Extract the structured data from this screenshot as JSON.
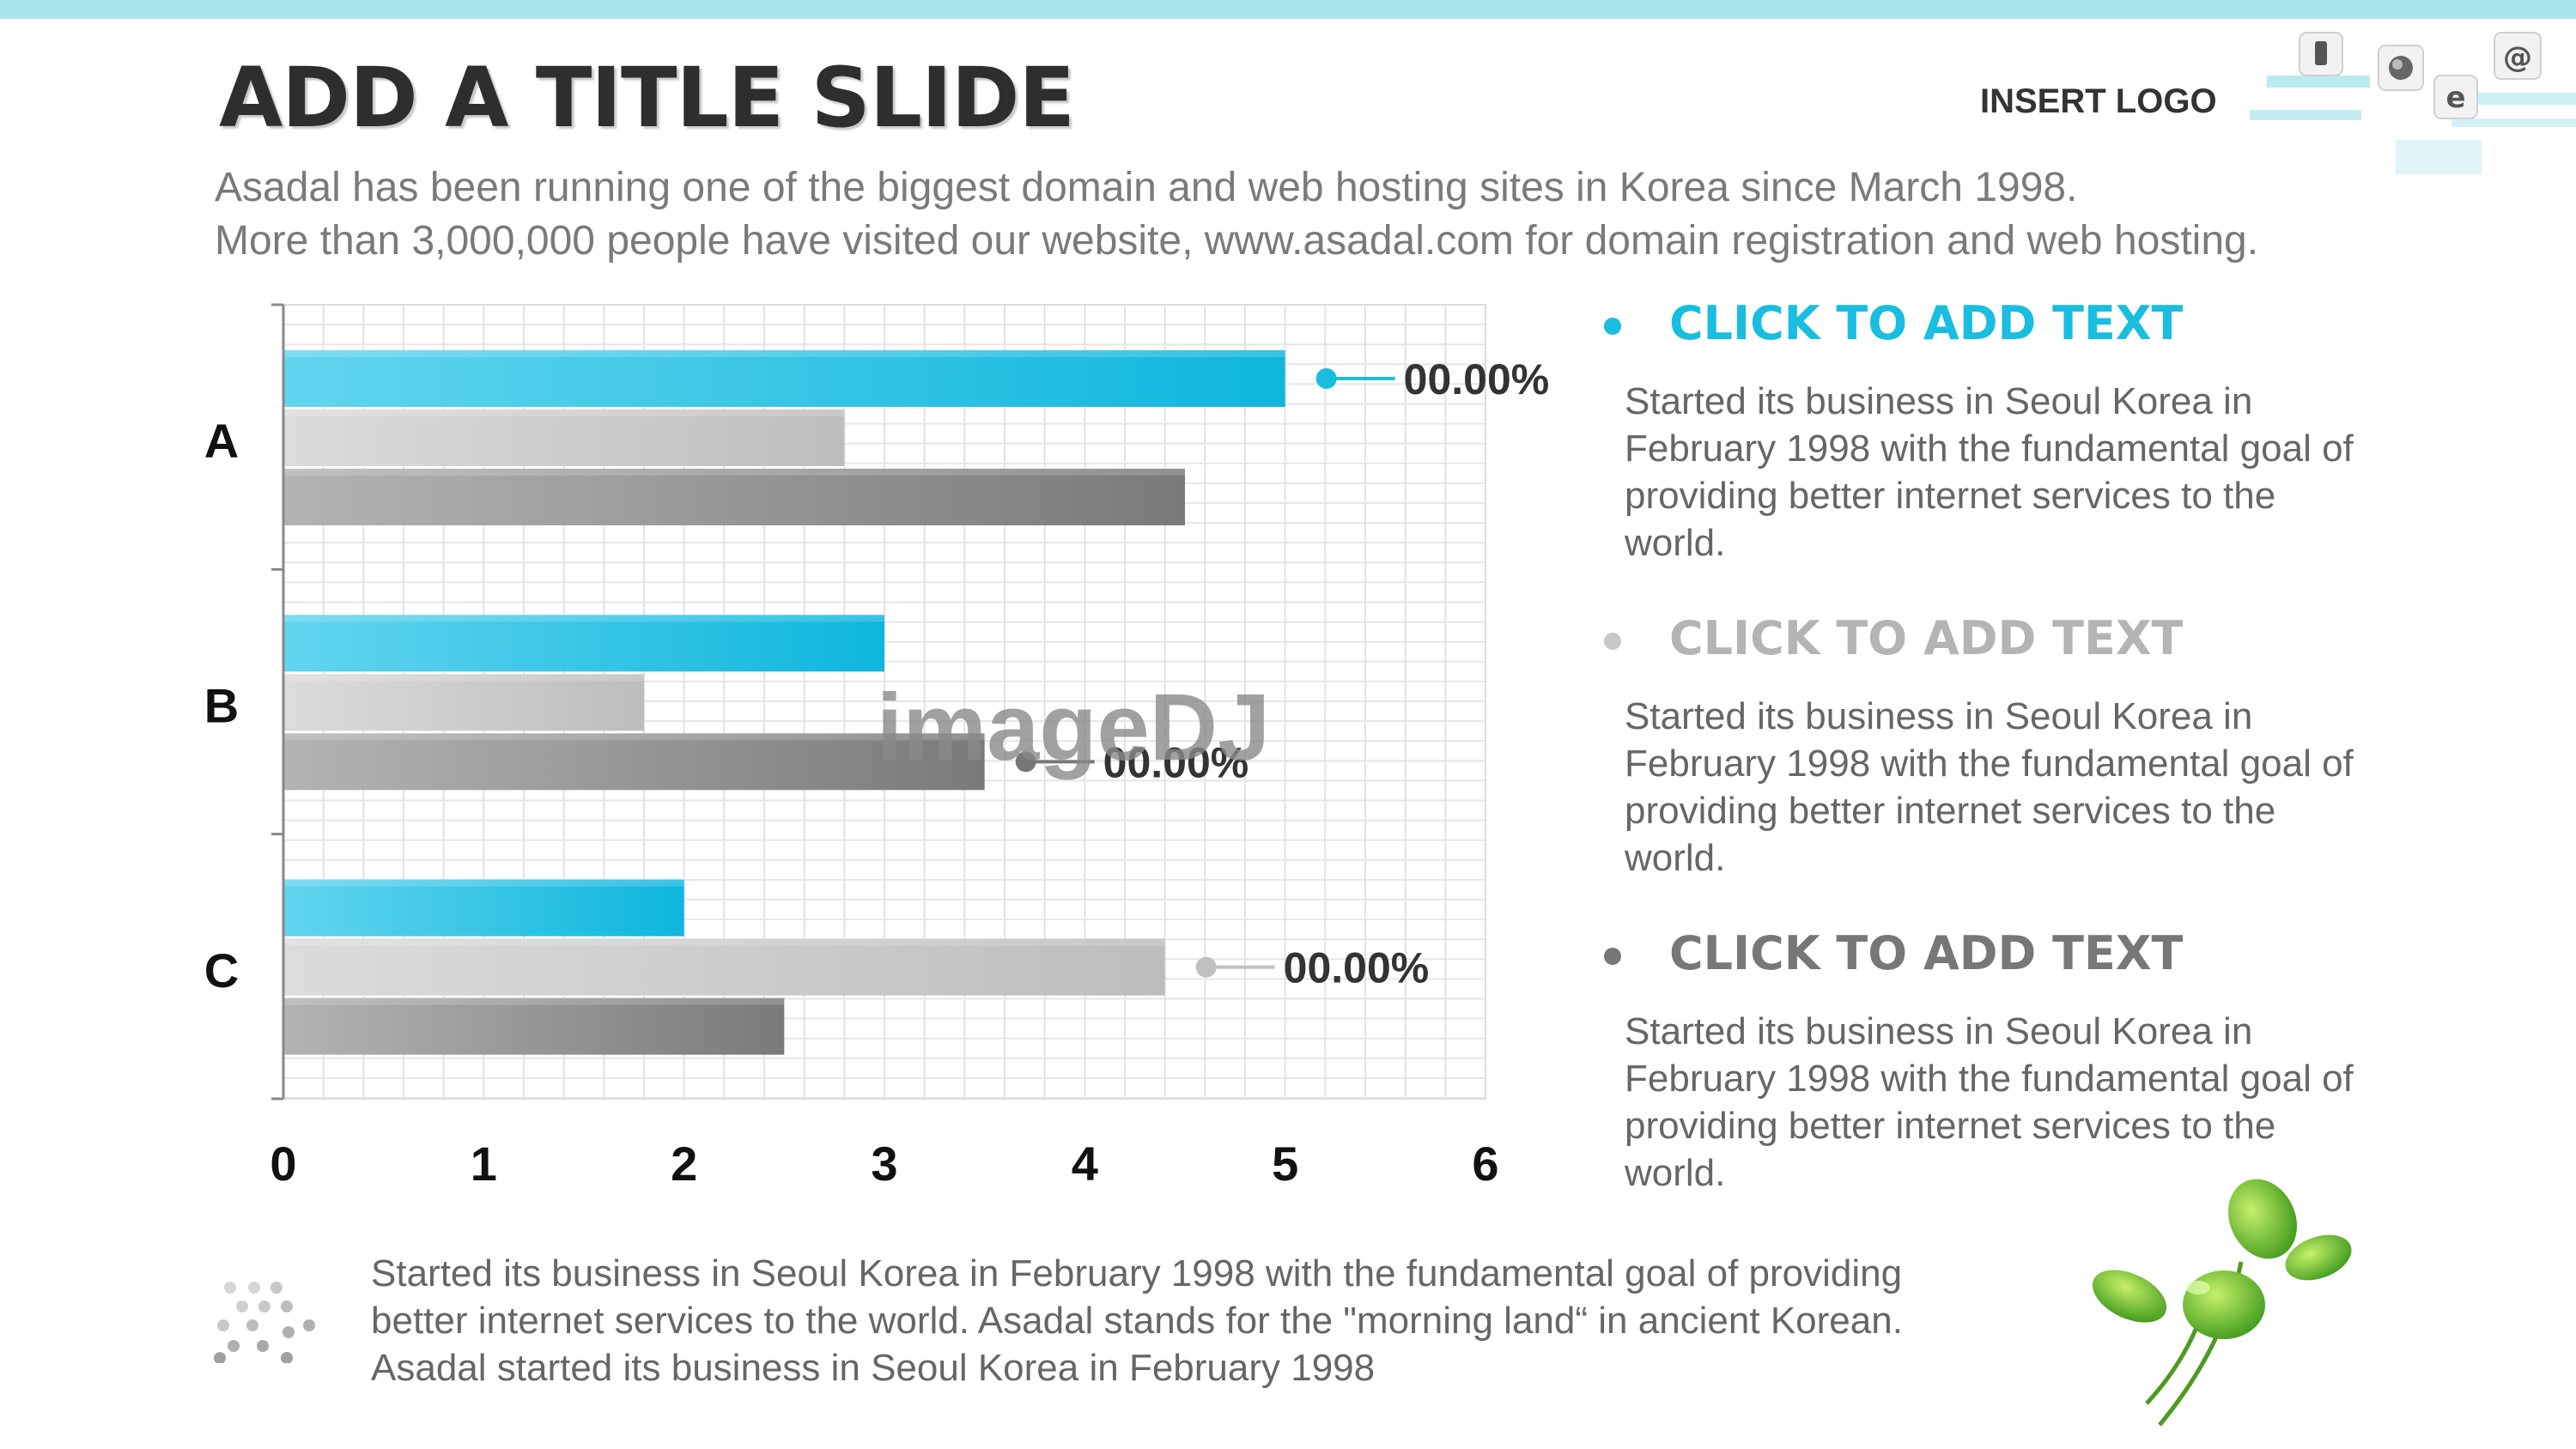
{
  "slide": {
    "title": "ADD A TITLE SLIDE",
    "subtitle_lines": [
      "Asadal has been running one of the biggest domain and web hosting sites in Korea since March 1998.",
      "More than 3,000,000 people have visited our website,  www.asadal.com for domain registration and web hosting."
    ],
    "logo_text": "INSERT LOGO",
    "watermark": "imageDJ"
  },
  "chart_data": {
    "type": "bar",
    "orientation": "horizontal",
    "categories": [
      "A",
      "B",
      "C"
    ],
    "series": [
      {
        "values": [
          5,
          3,
          2
        ],
        "color": "#19bde0"
      },
      {
        "values": [
          2.8,
          1.8,
          4.4
        ],
        "color": "#c8c8c8"
      },
      {
        "values": [
          4.5,
          3.5,
          2.5
        ],
        "color": "#8c8c8c"
      }
    ],
    "xlim": [
      0,
      6
    ],
    "x_ticks": [
      0,
      1,
      2,
      3,
      4,
      5,
      6
    ],
    "grid": true,
    "annotations": [
      {
        "category": "A",
        "series_index": 0,
        "label": "00.00%",
        "color": "#19bde0"
      },
      {
        "category": "B",
        "series_index": 2,
        "label": "00.00%",
        "color": "#777777"
      },
      {
        "category": "C",
        "series_index": 1,
        "label": "00.00%",
        "color": "#c0c0c0"
      }
    ]
  },
  "bullets": [
    {
      "title": "CLICK TO ADD TEXT",
      "color": "#19bde0",
      "dot_color": "#19bde0",
      "body": "Started its business in Seoul Korea  in February 1998 with the fundamental goal of providing better internet services to the world."
    },
    {
      "title": "CLICK TO ADD TEXT",
      "color": "#b4b4b4",
      "dot_color": "#c8c8c8",
      "body": "Started its business in Seoul Korea  in February 1998 with the fundamental goal of providing better internet services to the world."
    },
    {
      "title": "CLICK TO ADD TEXT",
      "color": "#777777",
      "dot_color": "#777777",
      "body": "Started its business in Seoul Korea  in February 1998 with the fundamental goal of providing better internet services to the world."
    }
  ],
  "footer": {
    "lines": [
      "Started its business in Seoul Korea  in February 1998 with the fundamental goal of providing",
      "better internet services to the world. Asadal stands for the \"morning land“ in ancient Korean.",
      "Asadal started its business in Seoul Korea  in February 1998"
    ]
  }
}
